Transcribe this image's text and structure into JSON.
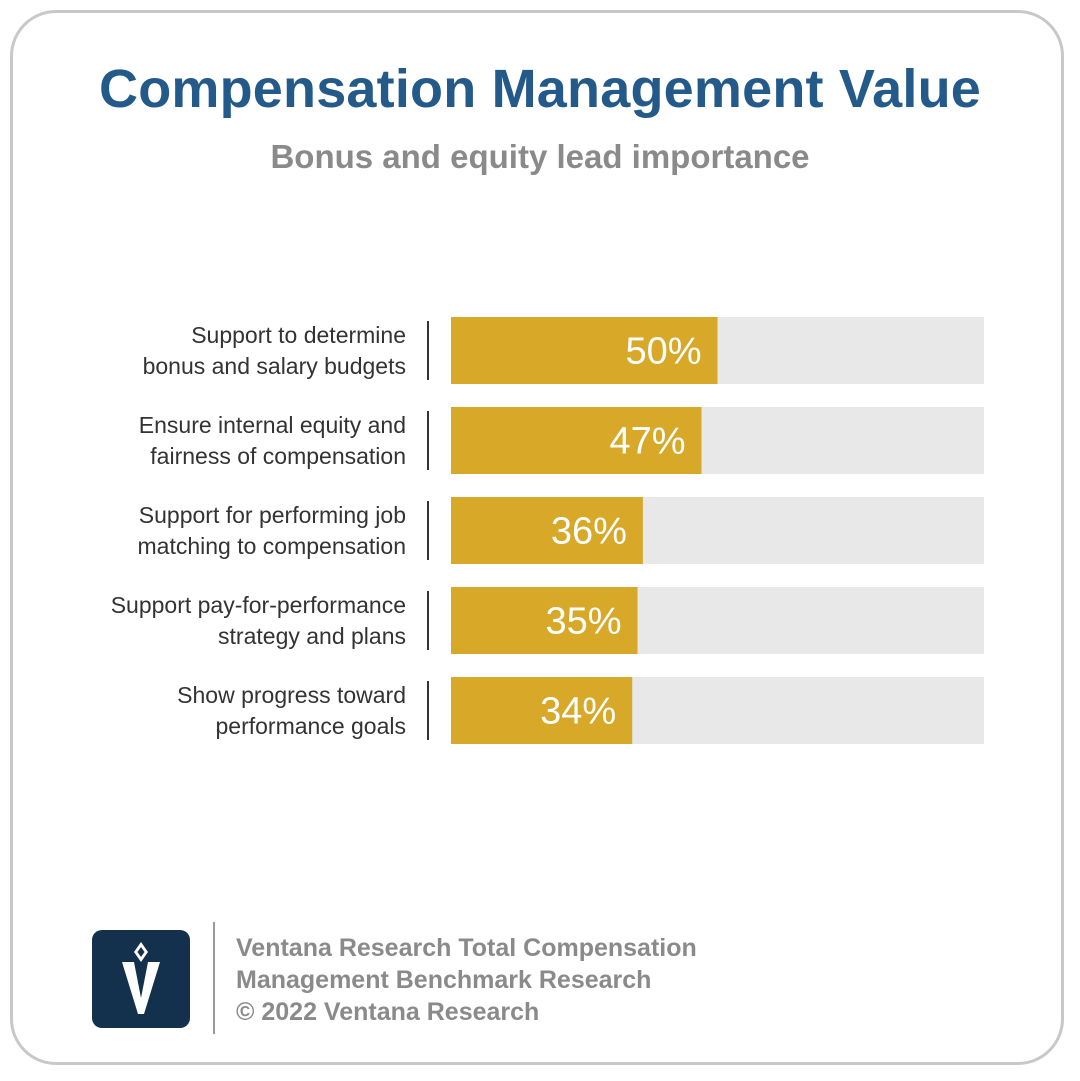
{
  "title": "Compensation Management Value",
  "subtitle": "Bonus and equity lead importance",
  "colors": {
    "accent": "#d8a828",
    "track": "#e8e8e8",
    "title": "#245a8a",
    "logo_bg": "#13304d"
  },
  "chart_data": {
    "type": "bar",
    "orientation": "horizontal",
    "xlim": [
      0,
      100
    ],
    "grid": false,
    "categories": [
      [
        "Support to determine",
        "bonus and salary budgets"
      ],
      [
        "Ensure internal equity and",
        "fairness of compensation"
      ],
      [
        "Support for performing job",
        "matching to compensation"
      ],
      [
        "Support pay-for-performance",
        "strategy and plans"
      ],
      [
        "Show progress toward",
        "performance goals"
      ]
    ],
    "values": [
      50,
      47,
      36,
      35,
      34
    ],
    "value_labels": [
      "50%",
      "47%",
      "36%",
      "35%",
      "34%"
    ]
  },
  "footer": {
    "logo_icon": "ventana-v-logo-icon",
    "source_line1": "Ventana Research Total Compensation",
    "source_line2": "Management Benchmark Research",
    "copyright": "© 2022 Ventana Research"
  }
}
